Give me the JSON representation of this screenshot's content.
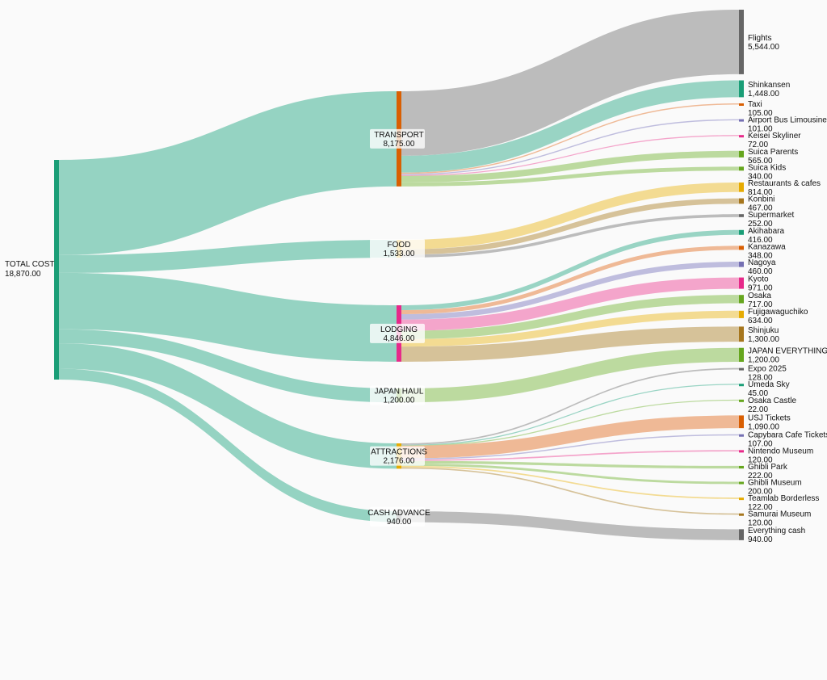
{
  "chart_data": {
    "type": "sankey",
    "title": "",
    "colors": {
      "root": "#1a9e77",
      "root_link": "#93d2c1",
      "transport": "#d95f02",
      "food": "#e6ab02",
      "lodging": "#e7298a",
      "japan_haul": "#66a61e",
      "attractions": "#e6ab02",
      "cash_advance": "#666666"
    },
    "root": {
      "id": "total",
      "label": "TOTAL COST",
      "value": 18870.0,
      "value_label": "18,870.00"
    },
    "categories": [
      {
        "id": "transport",
        "label": "TRANSPORT",
        "value": 8175.0,
        "value_label": "8,175.00",
        "items": [
          {
            "label": "Flights",
            "value": 5544.0,
            "value_label": "5,544.00",
            "color": "#666666",
            "link_color": "#b8b8b8"
          },
          {
            "label": "Shinkansen",
            "value": 1448.0,
            "value_label": "1,448.00",
            "color": "#1a9e77",
            "link_color": "#93d2c1"
          },
          {
            "label": "Taxi",
            "value": 105.0,
            "value_label": "105.00",
            "color": "#d95f02",
            "link_color": "#eeb590"
          },
          {
            "label": "Airport Bus Limousine",
            "value": 101.0,
            "value_label": "101.00",
            "color": "#7570b3",
            "link_color": "#bcb9dc"
          },
          {
            "label": "Keisei Skyliner",
            "value": 72.0,
            "value_label": "72.00",
            "color": "#e7298a",
            "link_color": "#f3a0c8"
          },
          {
            "label": "Suica Parents",
            "value": 565.0,
            "value_label": "565.00",
            "color": "#66a61e",
            "link_color": "#b8d89a"
          },
          {
            "label": "Suica Kids",
            "value": 340.0,
            "value_label": "340.00",
            "color": "#66a61e",
            "link_color": "#b8d89a"
          }
        ]
      },
      {
        "id": "food",
        "label": "FOOD",
        "value": 1533.0,
        "value_label": "1,533.00",
        "items": [
          {
            "label": "Restaurants & cafes",
            "value": 814.0,
            "value_label": "814.00",
            "color": "#e6ab02",
            "link_color": "#f2d98c"
          },
          {
            "label": "Konbini",
            "value": 467.0,
            "value_label": "467.00",
            "color": "#a6761d",
            "link_color": "#d4bf94"
          },
          {
            "label": "Supermarket",
            "value": 252.0,
            "value_label": "252.00",
            "color": "#666666",
            "link_color": "#b8b8b8"
          }
        ]
      },
      {
        "id": "lodging",
        "label": "LODGING",
        "value": 4846.0,
        "value_label": "4,846.00",
        "items": [
          {
            "label": "Akihabara",
            "value": 416.0,
            "value_label": "416.00",
            "color": "#1a9e77",
            "link_color": "#93d2c1"
          },
          {
            "label": "Kanazawa",
            "value": 348.0,
            "value_label": "348.00",
            "color": "#d95f02",
            "link_color": "#eeb590"
          },
          {
            "label": "Nagoya",
            "value": 460.0,
            "value_label": "460.00",
            "color": "#7570b3",
            "link_color": "#bcb9dc"
          },
          {
            "label": "Kyoto",
            "value": 971.0,
            "value_label": "971.00",
            "color": "#e7298a",
            "link_color": "#f3a0c8"
          },
          {
            "label": "Osaka",
            "value": 717.0,
            "value_label": "717.00",
            "color": "#66a61e",
            "link_color": "#b8d89a"
          },
          {
            "label": "Fujigawaguchiko",
            "value": 634.0,
            "value_label": "634.00",
            "color": "#e6ab02",
            "link_color": "#f2d98c"
          },
          {
            "label": "Shinjuku",
            "value": 1300.0,
            "value_label": "1,300.00",
            "color": "#a6761d",
            "link_color": "#d4bf94"
          }
        ]
      },
      {
        "id": "japan_haul",
        "label": "JAPAN HAUL",
        "value": 1200.0,
        "value_label": "1,200.00",
        "items": [
          {
            "label": "JAPAN EVERYTHING",
            "value": 1200.0,
            "value_label": "1,200.00",
            "color": "#66a61e",
            "link_color": "#b8d89a"
          }
        ]
      },
      {
        "id": "attractions",
        "label": "ATTRACTIONS",
        "value": 2176.0,
        "value_label": "2,176.00",
        "items": [
          {
            "label": "Expo 2025",
            "value": 128.0,
            "value_label": "128.00",
            "color": "#666666",
            "link_color": "#b8b8b8"
          },
          {
            "label": "Umeda Sky",
            "value": 45.0,
            "value_label": "45.00",
            "color": "#1a9e77",
            "link_color": "#93d2c1"
          },
          {
            "label": "Osaka Castle",
            "value": 22.0,
            "value_label": "22.00",
            "color": "#66a61e",
            "link_color": "#b8d89a"
          },
          {
            "label": "USJ Tickets",
            "value": 1090.0,
            "value_label": "1,090.00",
            "color": "#d95f02",
            "link_color": "#eeb590"
          },
          {
            "label": "Capybara Cafe Tickets",
            "value": 107.0,
            "value_label": "107.00",
            "color": "#7570b3",
            "link_color": "#bcb9dc"
          },
          {
            "label": "Nintendo Museum",
            "value": 120.0,
            "value_label": "120.00",
            "color": "#e7298a",
            "link_color": "#f3a0c8"
          },
          {
            "label": "Ghibli Park",
            "value": 222.0,
            "value_label": "222.00",
            "color": "#66a61e",
            "link_color": "#b8d89a"
          },
          {
            "label": "Ghibli Museum",
            "value": 200.0,
            "value_label": "200.00",
            "color": "#66a61e",
            "link_color": "#b8d89a"
          },
          {
            "label": "Teamlab Borderless",
            "value": 122.0,
            "value_label": "122.00",
            "color": "#e6ab02",
            "link_color": "#f2d98c"
          },
          {
            "label": "Samurai Museum",
            "value": 120.0,
            "value_label": "120.00",
            "color": "#a6761d",
            "link_color": "#d4bf94"
          }
        ]
      },
      {
        "id": "cash_advance",
        "label": "CASH ADVANCE",
        "value": 940.0,
        "value_label": "940.00",
        "items": [
          {
            "label": "Everything cash",
            "value": 940.0,
            "value_label": "940.00",
            "color": "#666666",
            "link_color": "#b8b8b8"
          }
        ]
      }
    ]
  }
}
